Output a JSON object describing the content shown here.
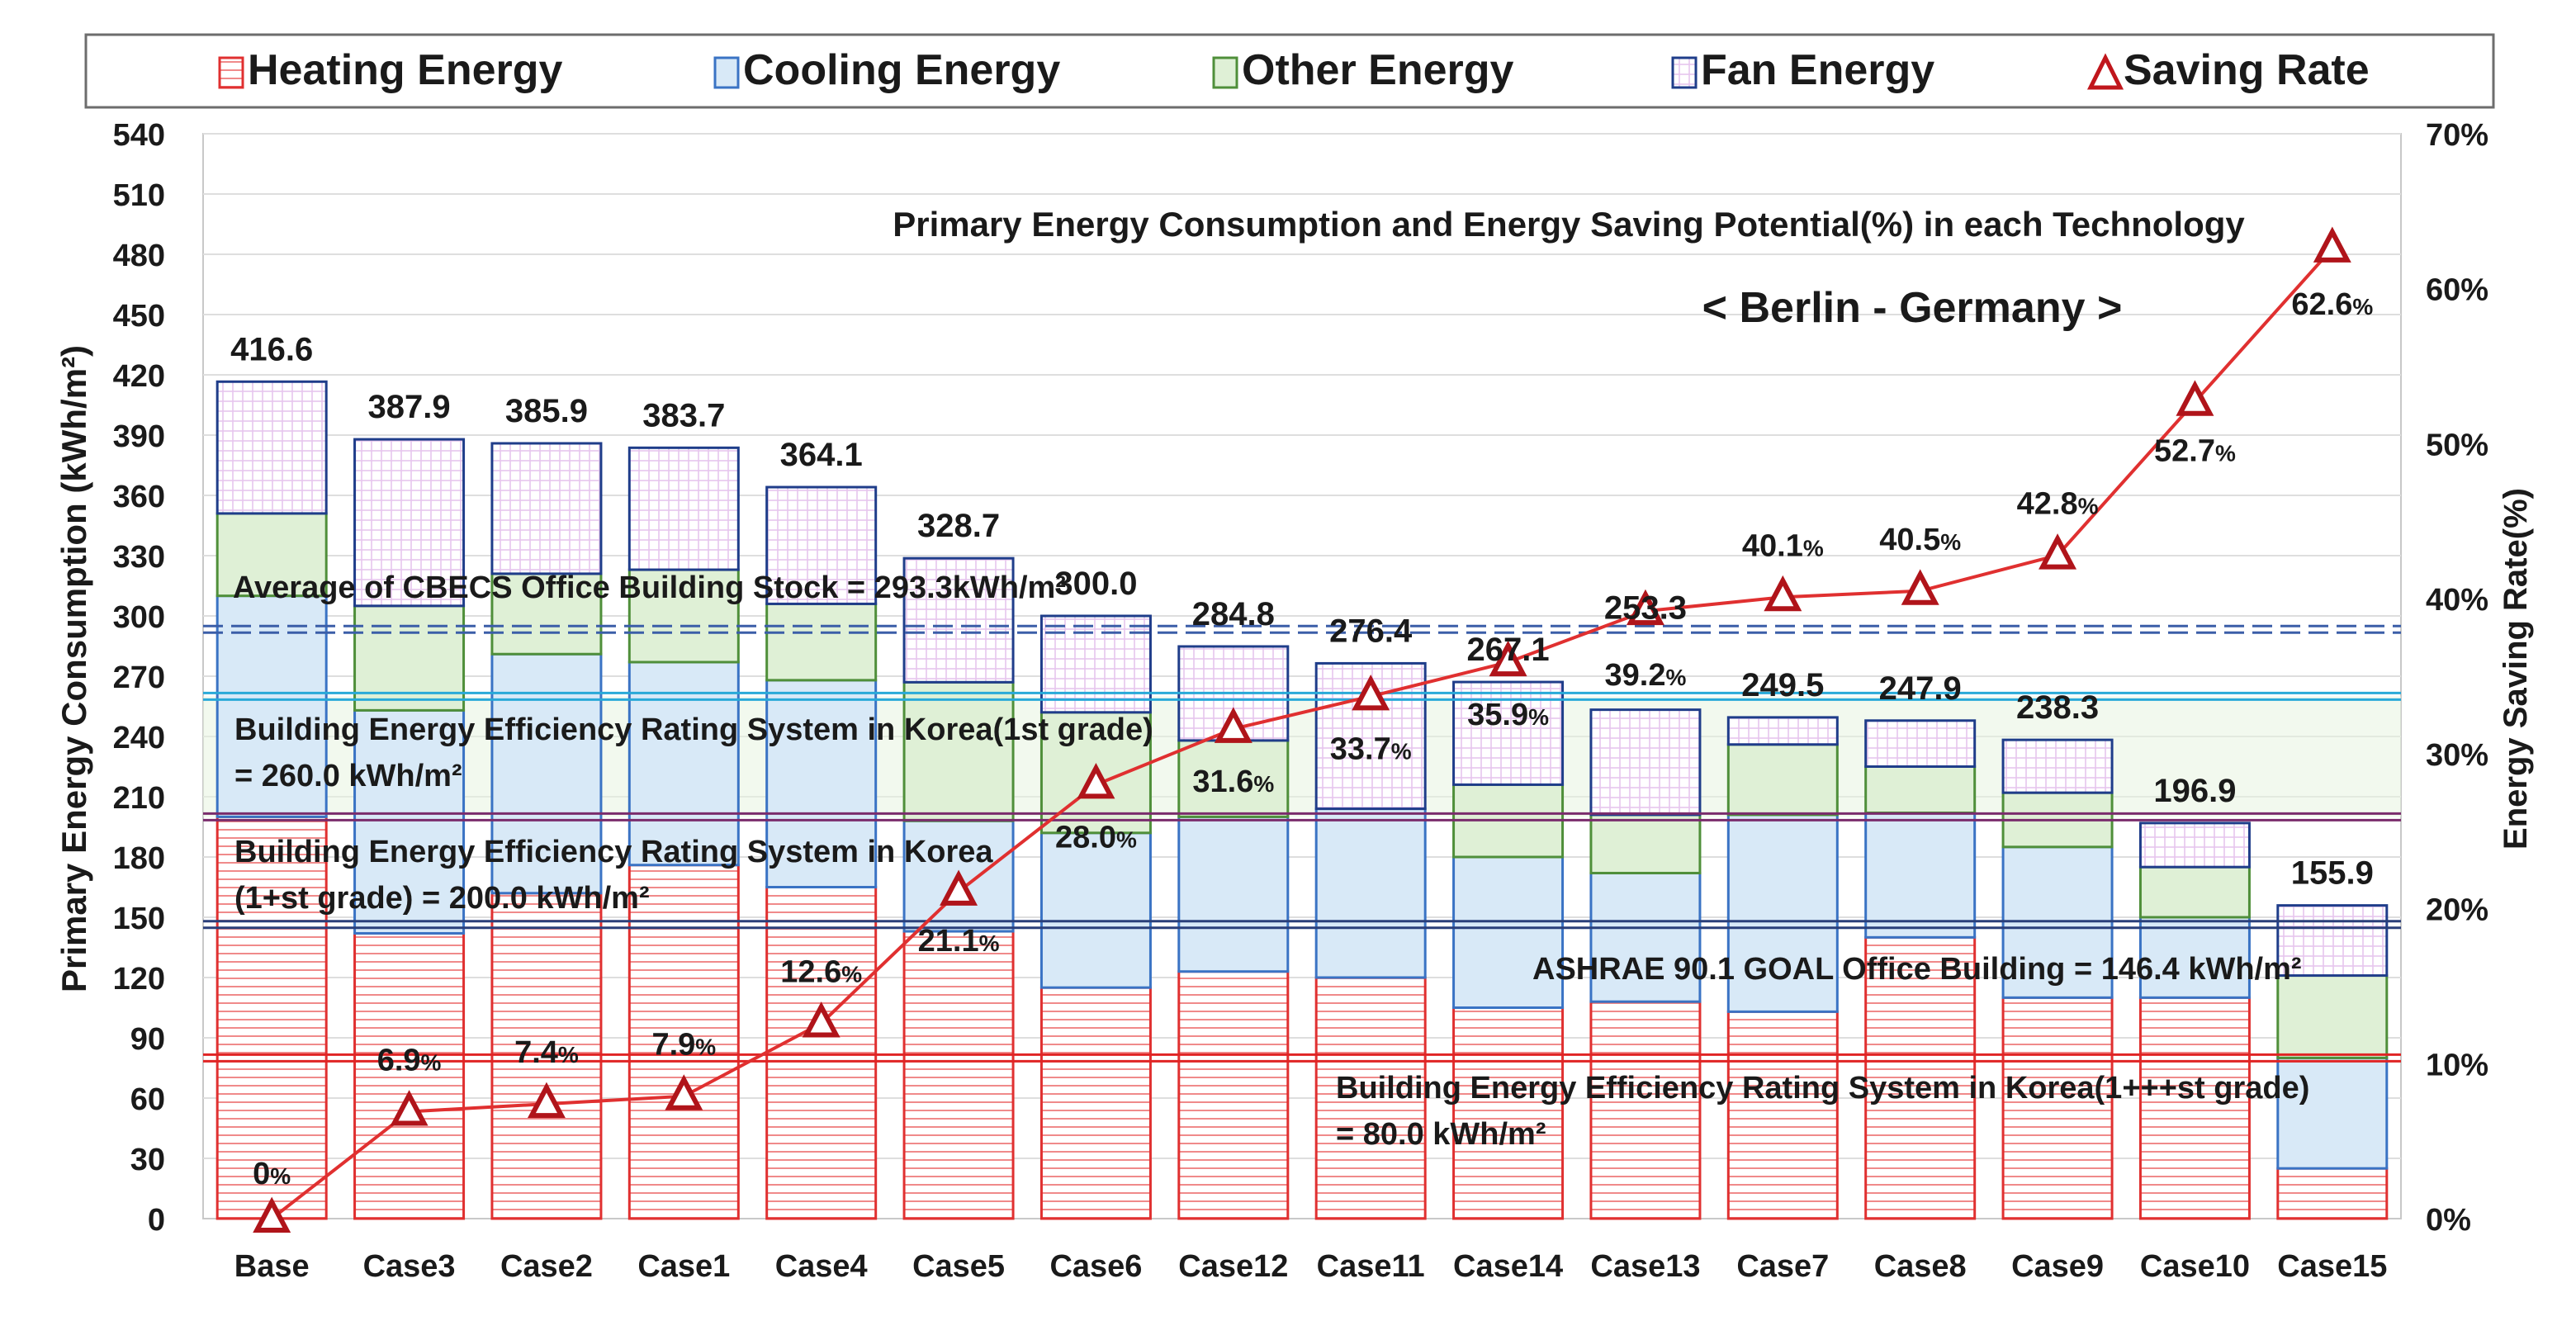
{
  "chart_data": {
    "type": "bar",
    "title": "Primary Energy Consumption and Energy Saving Potential(%) in each Technology",
    "subtitle": "< Berlin - Germany >",
    "ylabel": "Primary Energy Consumption (kWh/m²)",
    "y2label": "Energy Saving Rate(%)",
    "ylim": [
      0,
      540
    ],
    "y_ticks": [
      "0",
      "30",
      "60",
      "90",
      "120",
      "150",
      "180",
      "210",
      "240",
      "270",
      "300",
      "330",
      "360",
      "390",
      "420",
      "450",
      "480",
      "510",
      "540"
    ],
    "ylim2": [
      0,
      70
    ],
    "y2_ticks": [
      "0%",
      "10%",
      "20%",
      "30%",
      "40%",
      "50%",
      "60%",
      "70%"
    ],
    "grid": true,
    "legend_position": "top",
    "categories": [
      "Base",
      "Case3",
      "Case2",
      "Case1",
      "Case4",
      "Case5",
      "Case6",
      "Case12",
      "Case11",
      "Case14",
      "Case13",
      "Case7",
      "Case8",
      "Case9",
      "Case10",
      "Case15"
    ],
    "series": [
      {
        "name": "Heating Energy",
        "color": "#e03030",
        "values": [
          200,
          142,
          162,
          176,
          165,
          143,
          115,
          123,
          120,
          105,
          108,
          103,
          140,
          110,
          110,
          25
        ]
      },
      {
        "name": "Cooling Energy",
        "color": "#3a73c4",
        "values": [
          110,
          111,
          119,
          101,
          103,
          55,
          77,
          77,
          84,
          75,
          64,
          98,
          62,
          75,
          40,
          55
        ]
      },
      {
        "name": "Other Energy",
        "color": "#4f8f3a",
        "values": [
          41,
          52,
          40,
          46,
          38,
          69,
          60,
          38,
          0,
          36,
          29,
          35,
          23,
          27,
          25,
          41
        ]
      },
      {
        "name": "Fan Energy",
        "color": "#1f3d8a",
        "values": [
          65.6,
          82.9,
          64.9,
          60.7,
          58.1,
          61.7,
          48.0,
          46.8,
          72.4,
          51.1,
          52.3,
          13.5,
          22.9,
          26.3,
          21.9,
          34.9
        ]
      },
      {
        "name": "Saving Rate",
        "color": "#c0161c",
        "axis": "right",
        "values": [
          0,
          6.9,
          7.4,
          7.9,
          12.6,
          21.1,
          28.0,
          31.6,
          33.7,
          35.9,
          39.2,
          40.1,
          40.5,
          42.8,
          52.7,
          62.6
        ]
      }
    ],
    "total_labels": [
      "416.6",
      "387.9",
      "385.9",
      "383.7",
      "364.1",
      "328.7",
      "300.0",
      "284.8",
      "276.4",
      "267.1",
      "253.3",
      "249.5",
      "247.9",
      "238.3",
      "196.9",
      "155.9"
    ],
    "rate_labels": [
      {
        "num": "0",
        "pct": "%"
      },
      {
        "num": "6.9",
        "pct": "%"
      },
      {
        "num": "7.4",
        "pct": "%"
      },
      {
        "num": "7.9",
        "pct": "%"
      },
      {
        "num": "12.6",
        "pct": "%"
      },
      {
        "num": "21.1",
        "pct": "%"
      },
      {
        "num": "28.0",
        "pct": "%"
      },
      {
        "num": "31.6",
        "pct": "%"
      },
      {
        "num": "33.7",
        "pct": "%"
      },
      {
        "num": "35.9",
        "pct": "%"
      },
      {
        "num": "39.2",
        "pct": "%"
      },
      {
        "num": "40.1",
        "pct": "%"
      },
      {
        "num": "40.5",
        "pct": "%"
      },
      {
        "num": "42.8",
        "pct": "%"
      },
      {
        "num": "52.7",
        "pct": "%"
      },
      {
        "num": "62.6",
        "pct": "%"
      }
    ],
    "reference_lines": [
      {
        "value": 293.3,
        "color": "#3b5ea8",
        "style": "dashed",
        "lines": [
          "Average of CBECS Office Building Stock = 293.3kWh/m²"
        ]
      },
      {
        "value": 260.0,
        "color": "#29a9d8",
        "style": "solid",
        "lines": [
          "Building Energy Efficiency Rating System in Korea(1st grade)",
          "= 260.0 kWh/m²"
        ]
      },
      {
        "value": 200.0,
        "color": "#7a2c6c",
        "style": "solid",
        "lines": [
          "Building Energy Efficiency Rating System in Korea",
          "(1+st grade) = 200.0 kWh/m²"
        ]
      },
      {
        "value": 146.4,
        "color": "#2a3f7a",
        "style": "solid",
        "lines": [
          "ASHRAE 90.1 GOAL Office Building = 146.4 kWh/m²"
        ]
      },
      {
        "value": 80.0,
        "color": "#e02424",
        "style": "solid",
        "lines": [
          "Building Energy Efficiency Rating System in Korea(1+++st grade)",
          "= 80.0 kWh/m²"
        ]
      }
    ]
  }
}
